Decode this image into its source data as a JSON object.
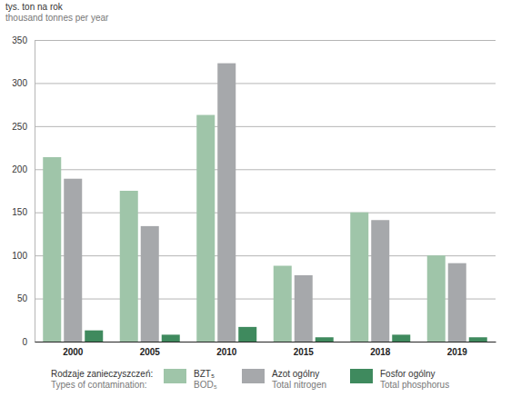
{
  "chart_data": {
    "type": "bar",
    "y_label": "tys. ton na rok\nthousand tonnes per year",
    "categories": [
      "2000",
      "2005",
      "2010",
      "2015",
      "2018",
      "2019"
    ],
    "series": [
      {
        "name": "BZT₅\nBOD₅",
        "color": "#9fc5a9",
        "values": [
          214,
          175,
          263,
          88,
          150,
          100
        ]
      },
      {
        "name": "Azot ogólny\nTotal nitrogen",
        "color": "#a6a8ab",
        "values": [
          189,
          134,
          323,
          77,
          141,
          91
        ]
      },
      {
        "name": "Fosfor ogólny\nTotal phosphorus",
        "color": "#3f8a5e",
        "values": [
          13,
          8,
          17,
          5,
          8,
          5
        ]
      }
    ],
    "legend_title": "Rodzaje zanieczyszczeń:\nTypes of contamination:",
    "legend": "bottom",
    "ylim": [
      0,
      350
    ],
    "yticks": [
      0,
      50,
      100,
      150,
      200,
      250,
      300,
      350
    ],
    "grid": true
  }
}
